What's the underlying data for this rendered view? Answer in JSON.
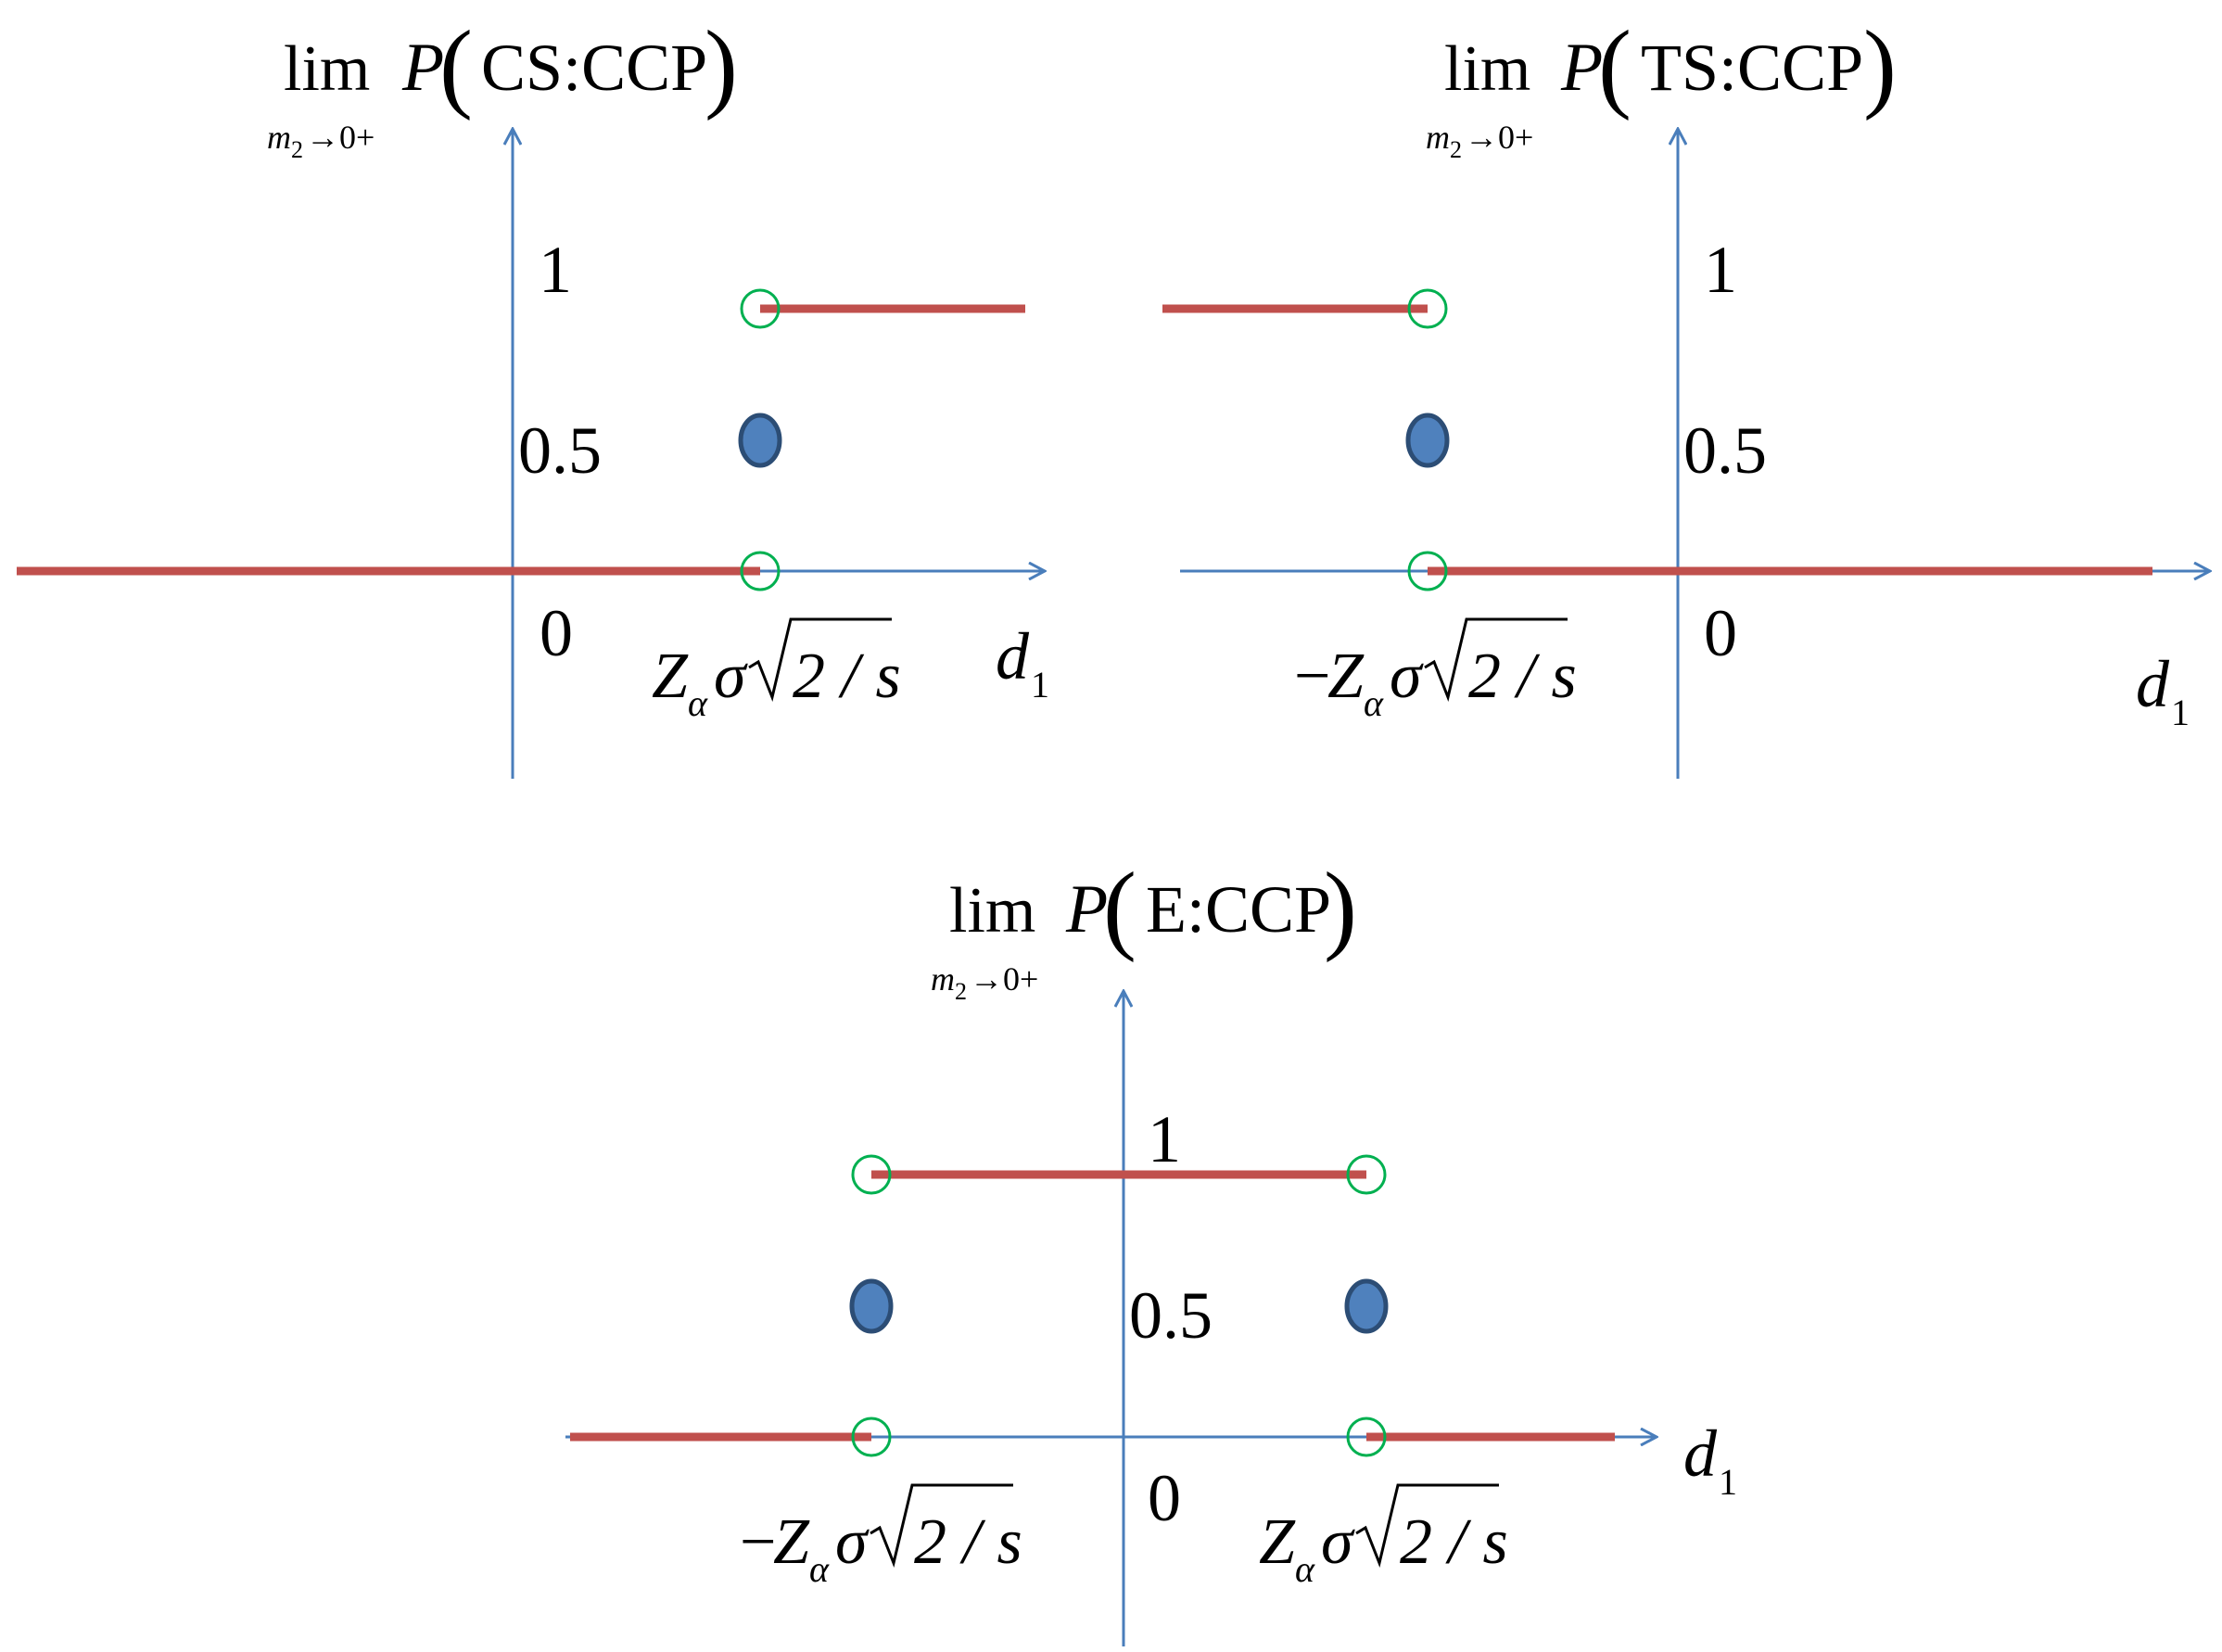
{
  "colors": {
    "axis": "#4a7ebb",
    "step_line": "#c0504d",
    "filled_dot": "#4f81bd",
    "filled_dot_outline": "#2c4d75",
    "open_circle": "#00b050",
    "text": "#000000"
  },
  "panels": {
    "cs": {
      "title": {
        "op": "lim",
        "sub_var": "m",
        "sub_idx": "2",
        "sub_tail": "→0+",
        "func": "P",
        "arg": "CS:CCP"
      },
      "y_ticks": {
        "one": "1",
        "half": "0.5",
        "zero": "0"
      },
      "threshold_label": {
        "z": "Z",
        "alpha": "α",
        "sigma": "σ",
        "radicand": "2 / s"
      },
      "x_label": {
        "var": "d",
        "sub": "1"
      }
    },
    "ts": {
      "title": {
        "op": "lim",
        "sub_var": "m",
        "sub_idx": "2",
        "sub_tail": "→0+",
        "func": "P",
        "arg": "TS:CCP"
      },
      "y_ticks": {
        "one": "1",
        "half": "0.5",
        "zero": "0"
      },
      "threshold_label": {
        "minus": "−",
        "z": "Z",
        "alpha": "α",
        "sigma": "σ",
        "radicand": "2 / s"
      },
      "x_label": {
        "var": "d",
        "sub": "1"
      }
    },
    "e": {
      "title": {
        "op": "lim",
        "sub_var": "m",
        "sub_idx": "2",
        "sub_tail": "→0+",
        "func": "P",
        "arg": "E:CCP"
      },
      "y_ticks": {
        "one": "1",
        "half": "0.5",
        "zero": "0"
      },
      "neg_threshold_label": {
        "minus": "−",
        "z": "Z",
        "alpha": "α",
        "sigma": "σ",
        "radicand": "2 / s"
      },
      "pos_threshold_label": {
        "z": "Z",
        "alpha": "α",
        "sigma": "σ",
        "radicand": "2 / s"
      },
      "x_label": {
        "var": "d",
        "sub": "1"
      }
    }
  }
}
